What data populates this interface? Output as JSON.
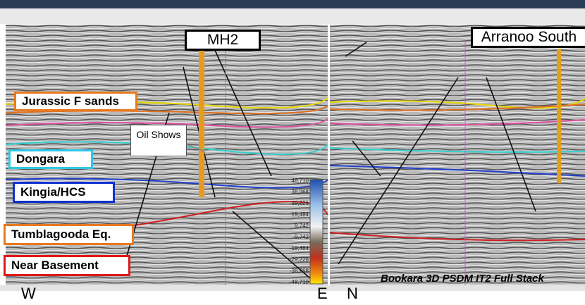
{
  "wells": {
    "left": "MH2",
    "right": "Arranoo South"
  },
  "horizons": [
    "Jurassic F sands",
    "Dongara",
    "Kingia/HCS",
    "Tumblagooda Eq.",
    "Near Basement"
  ],
  "callout": "Oil Shows",
  "colorbar": [
    "48,710",
    "38,968",
    "29,226",
    "19,484",
    "9,742",
    "-9,742",
    "-19,484",
    "-29,226",
    "-38,968",
    "-48,710"
  ],
  "directions": {
    "west": "W",
    "east": "E",
    "north": "N"
  },
  "caption": "Bookara 3D PSDM IT2 Full Stack"
}
